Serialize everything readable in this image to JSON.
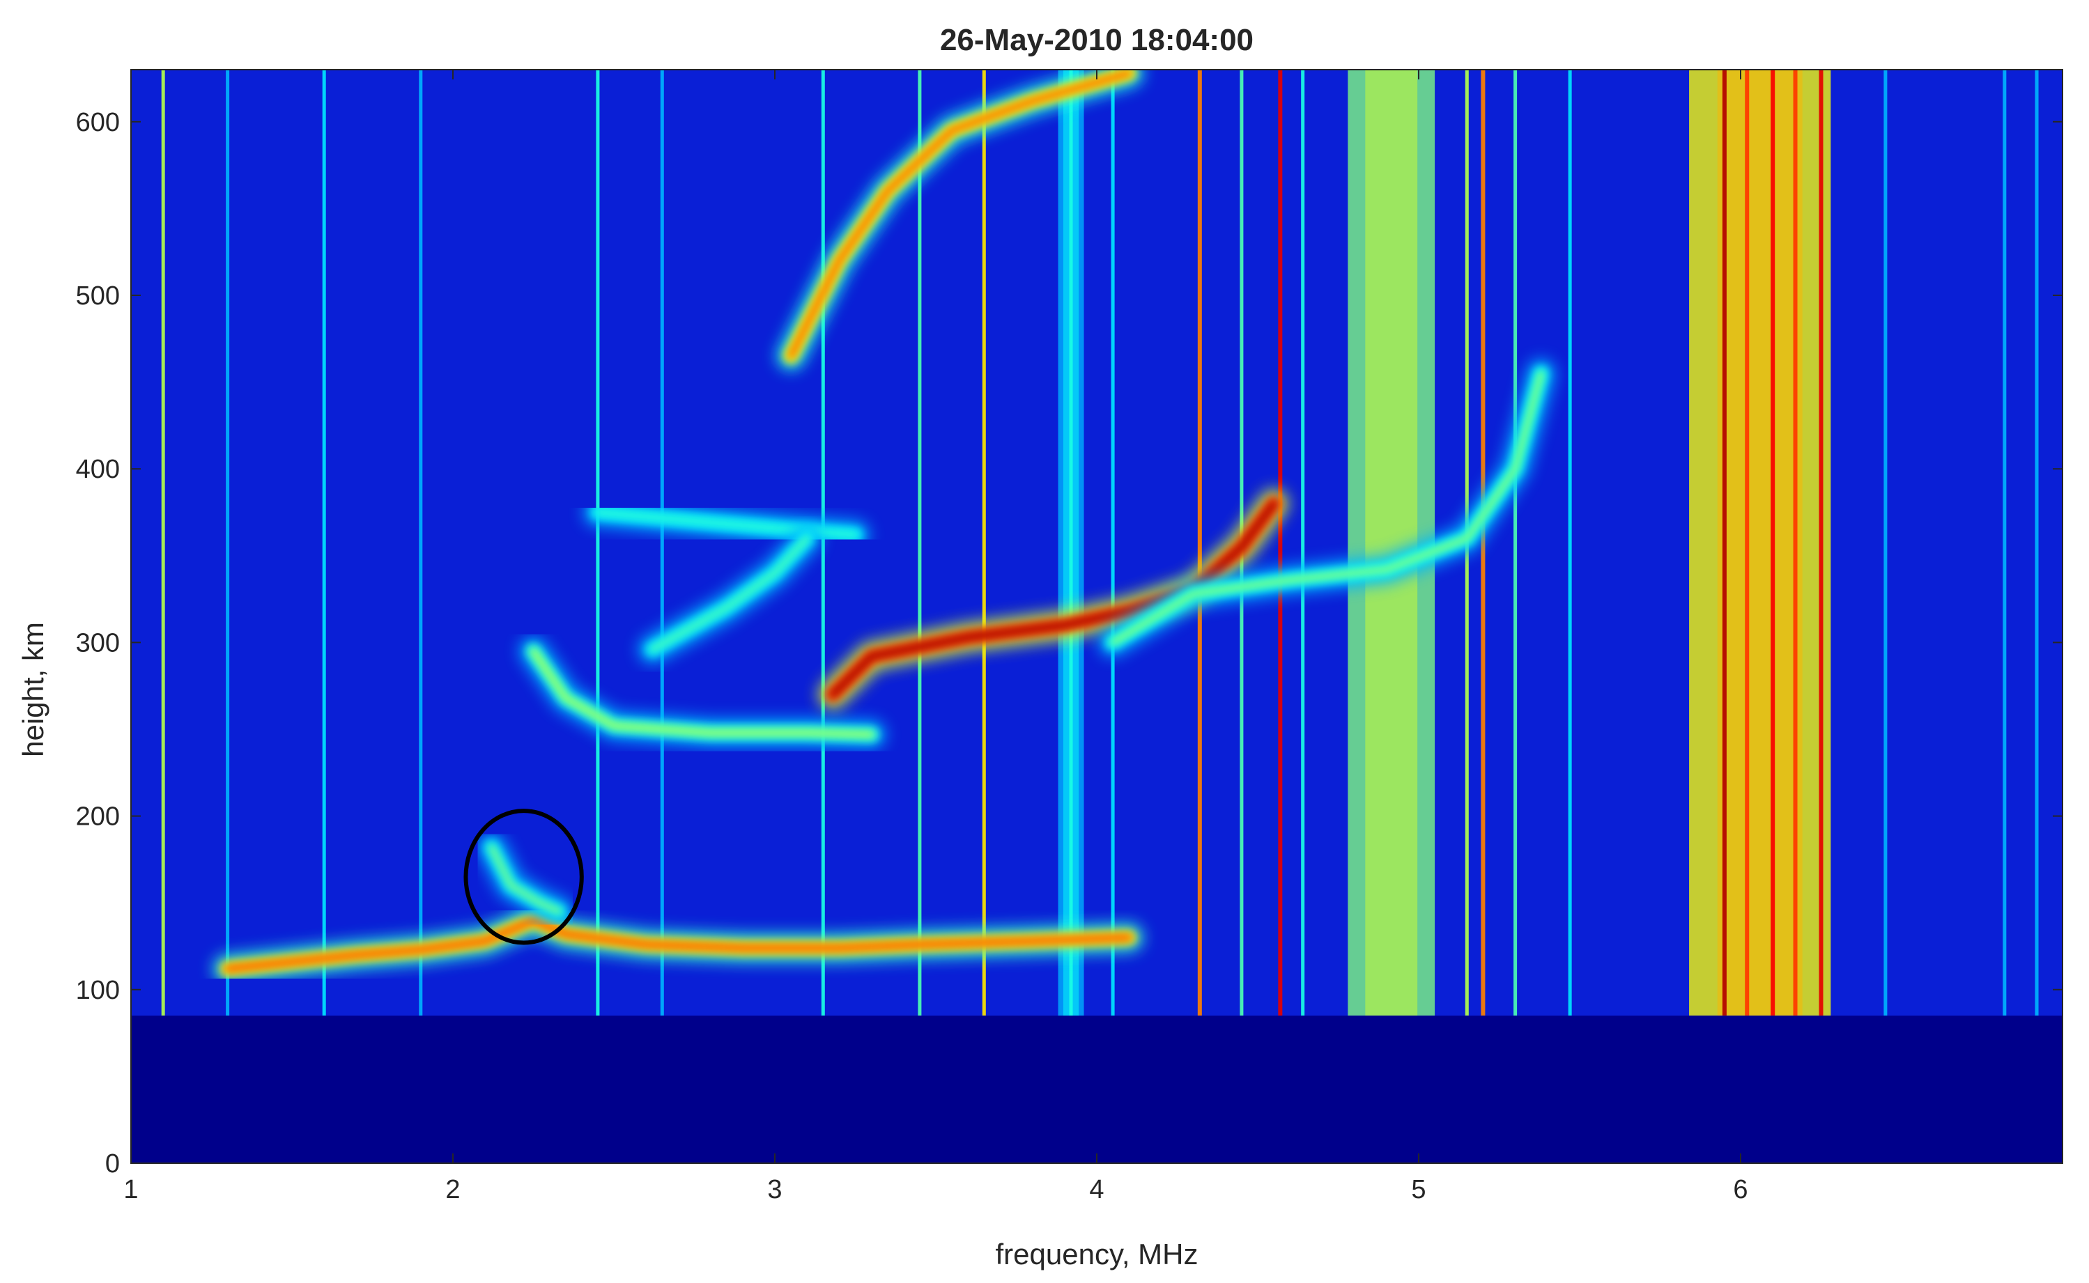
{
  "chart_data": {
    "type": "heatmap",
    "title": "26-May-2010 18:04:00",
    "xlabel": "frequency, MHz",
    "ylabel": "height, km",
    "xlim": [
      1,
      7
    ],
    "ylim": [
      0,
      630
    ],
    "xticks": [
      1,
      2,
      3,
      4,
      5,
      6
    ],
    "yticks": [
      0,
      100,
      200,
      300,
      400,
      500,
      600
    ],
    "colormap": "jet",
    "background_color": "#0a1fd6",
    "blanked_region": {
      "height_km_below": 85,
      "color": "#00008b"
    },
    "grid": false,
    "legend": "none",
    "traces": [
      {
        "label": "E region trace",
        "points": [
          [
            1.3,
            112
          ],
          [
            1.5,
            116
          ],
          [
            1.7,
            120
          ],
          [
            1.9,
            123
          ],
          [
            2.1,
            128
          ],
          [
            2.25,
            140
          ],
          [
            2.35,
            132
          ],
          [
            2.6,
            126
          ],
          [
            2.9,
            124
          ],
          [
            3.2,
            124
          ],
          [
            3.45,
            126
          ],
          [
            3.8,
            128
          ],
          [
            4.1,
            130
          ]
        ],
        "max_intensity": 0.8
      },
      {
        "label": "Es feature (circled)",
        "points": [
          [
            2.12,
            182
          ],
          [
            2.18,
            160
          ],
          [
            2.27,
            150
          ],
          [
            2.33,
            145
          ]
        ],
        "max_intensity": 0.5
      },
      {
        "label": "F1 echo",
        "points": [
          [
            2.25,
            295
          ],
          [
            2.35,
            268
          ],
          [
            2.5,
            252
          ],
          [
            2.8,
            248
          ],
          [
            3.1,
            248
          ],
          [
            3.3,
            247
          ]
        ],
        "max_intensity": 0.55
      },
      {
        "label": "F2 ordinary trace",
        "points": [
          [
            3.18,
            270
          ],
          [
            3.3,
            292
          ],
          [
            3.6,
            303
          ],
          [
            3.9,
            310
          ],
          [
            4.1,
            318
          ],
          [
            4.3,
            330
          ],
          [
            4.45,
            355
          ],
          [
            4.55,
            380
          ]
        ],
        "max_intensity": 0.97
      },
      {
        "label": "F2 extraordinary trace",
        "points": [
          [
            4.05,
            300
          ],
          [
            4.3,
            328
          ],
          [
            4.6,
            336
          ],
          [
            4.9,
            342
          ],
          [
            5.15,
            360
          ],
          [
            5.3,
            400
          ],
          [
            5.38,
            455
          ]
        ],
        "max_intensity": 0.52
      },
      {
        "label": "Second-hop F2 trace",
        "points": [
          [
            3.05,
            465
          ],
          [
            3.2,
            520
          ],
          [
            3.35,
            560
          ],
          [
            3.55,
            595
          ],
          [
            3.8,
            612
          ],
          [
            4.1,
            628
          ]
        ],
        "max_intensity": 0.78
      },
      {
        "label": "Second-hop F1 trace",
        "points": [
          [
            2.45,
            375
          ],
          [
            2.75,
            370
          ],
          [
            3.05,
            365
          ],
          [
            3.25,
            362
          ]
        ],
        "max_intensity": 0.42
      },
      {
        "label": "Oblique echo",
        "points": [
          [
            2.62,
            296
          ],
          [
            2.85,
            320
          ],
          [
            3.0,
            340
          ],
          [
            3.1,
            360
          ]
        ],
        "max_intensity": 0.45
      }
    ],
    "interference_lines": [
      {
        "f": 1.1,
        "intensity": 0.55
      },
      {
        "f": 1.3,
        "intensity": 0.3
      },
      {
        "f": 1.6,
        "intensity": 0.35
      },
      {
        "f": 1.9,
        "intensity": 0.3
      },
      {
        "f": 2.45,
        "intensity": 0.4
      },
      {
        "f": 2.65,
        "intensity": 0.3
      },
      {
        "f": 3.15,
        "intensity": 0.4
      },
      {
        "f": 3.45,
        "intensity": 0.45
      },
      {
        "f": 3.65,
        "intensity": 0.65
      },
      {
        "f": 3.92,
        "intensity": 0.4
      },
      {
        "f": 4.05,
        "intensity": 0.35
      },
      {
        "f": 4.32,
        "intensity": 0.75
      },
      {
        "f": 4.45,
        "intensity": 0.45
      },
      {
        "f": 4.57,
        "intensity": 0.9
      },
      {
        "f": 4.64,
        "intensity": 0.4
      },
      {
        "f": 5.15,
        "intensity": 0.55
      },
      {
        "f": 5.2,
        "intensity": 0.75
      },
      {
        "f": 5.3,
        "intensity": 0.45
      },
      {
        "f": 5.47,
        "intensity": 0.35
      },
      {
        "f": 6.45,
        "intensity": 0.3
      },
      {
        "f": 6.82,
        "intensity": 0.3
      },
      {
        "f": 6.92,
        "intensity": 0.3
      }
    ],
    "noise_bands": [
      {
        "from": 3.88,
        "to": 3.96,
        "intensity": 0.3
      },
      {
        "from": 4.78,
        "to": 5.05,
        "intensity": 0.5
      },
      {
        "from": 5.84,
        "to": 6.28,
        "intensity": 0.62
      }
    ],
    "strong_band_lines": [
      {
        "f": 5.95,
        "intensity": 0.95
      },
      {
        "f": 6.02,
        "intensity": 0.82
      },
      {
        "f": 6.1,
        "intensity": 0.88
      },
      {
        "f": 6.17,
        "intensity": 0.82
      },
      {
        "f": 6.25,
        "intensity": 0.9
      }
    ],
    "annotation": {
      "shape": "ellipse",
      "center": [
        2.22,
        165
      ],
      "radius_mhz": 0.18,
      "radius_km": 38,
      "color": "#000000"
    }
  }
}
